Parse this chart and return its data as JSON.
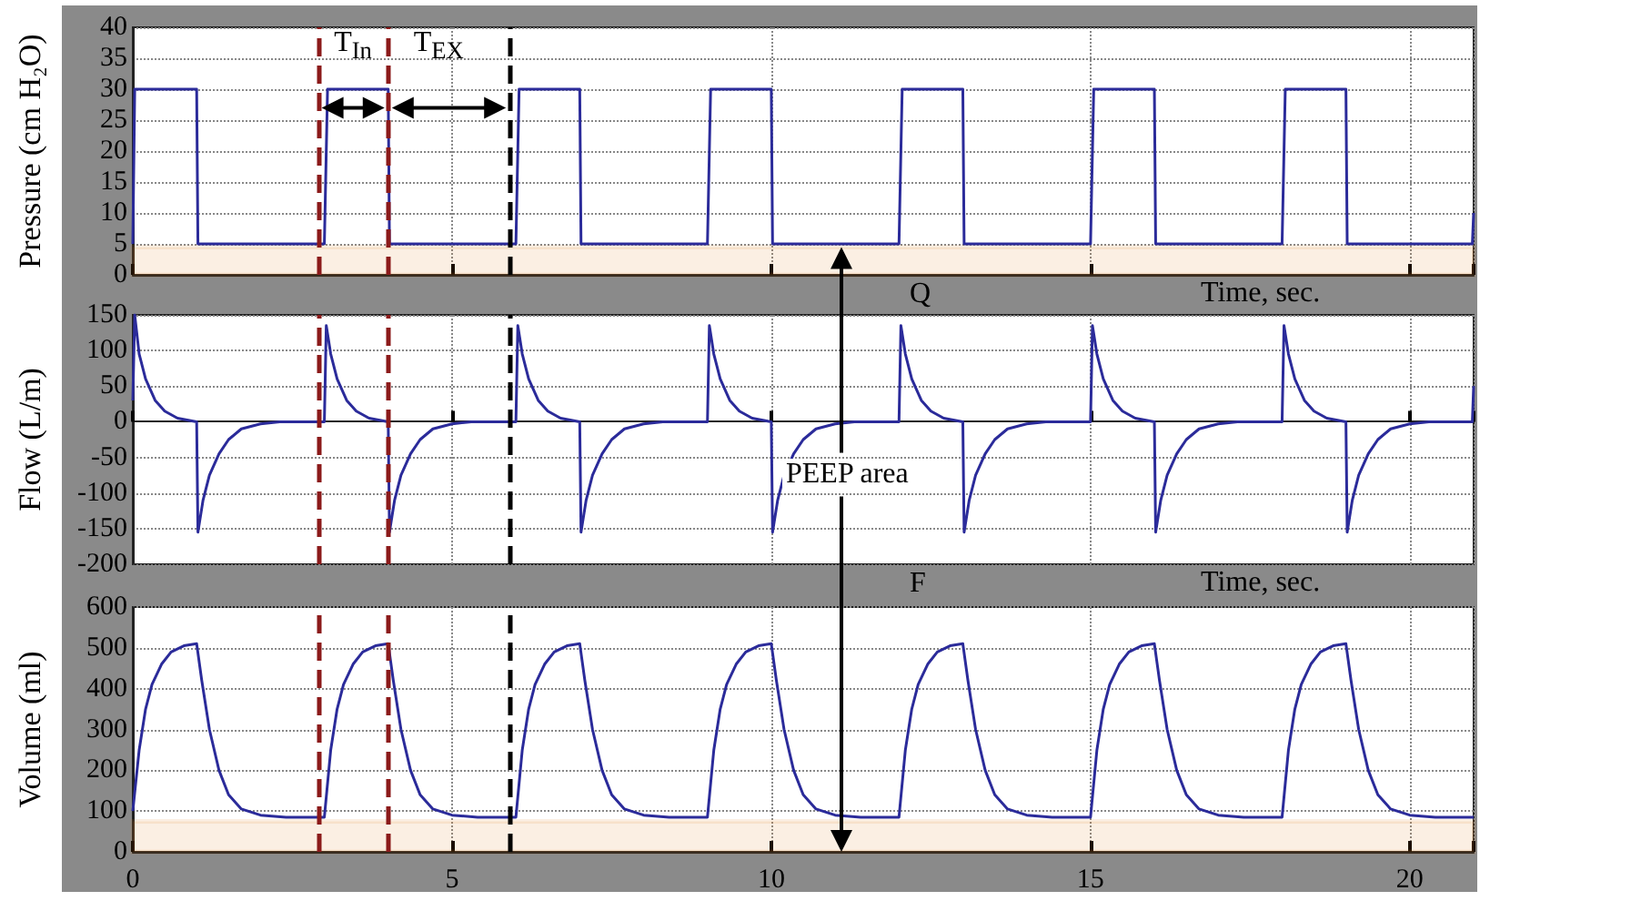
{
  "chart_data": [
    {
      "type": "line",
      "ylabel": "Pressure (cm H₂O)",
      "xlabel": "Time, sec.",
      "xlim": [
        0,
        21
      ],
      "xticks": [
        0,
        5,
        10,
        15,
        20
      ],
      "ylim": [
        0,
        40
      ],
      "yticks": [
        0,
        5,
        10,
        15,
        20,
        25,
        30,
        35,
        40
      ],
      "tick_labels": "y",
      "grid": true,
      "marker": "none",
      "line_style": "solid",
      "series": [
        {
          "color": "#2b2b9a",
          "x": [
            0,
            0.03,
            1,
            1.02,
            3,
            3.05,
            4,
            4.02,
            6,
            6.05,
            7,
            7.02,
            9,
            9.05,
            10,
            10.02,
            12,
            12.05,
            13,
            13.02,
            15,
            15.05,
            16,
            16.02,
            18,
            18.05,
            19,
            19.02,
            20.98,
            21
          ],
          "values": [
            5,
            30,
            30,
            5,
            5,
            30,
            30,
            5,
            5,
            30,
            30,
            5,
            5,
            30,
            30,
            5,
            5,
            30,
            30,
            5,
            5,
            30,
            30,
            5,
            5,
            30,
            30,
            5,
            5,
            10
          ]
        }
      ],
      "ref_lines": [
        {
          "axis": "x",
          "value": 2.9,
          "color": "#8b1a1a",
          "line_style": "dashed"
        },
        {
          "axis": "x",
          "value": 4,
          "color": "#8b1a1a",
          "line_style": "dashed"
        },
        {
          "axis": "x",
          "value": 5.9,
          "color": "#000000",
          "line_style": "dashed"
        }
      ],
      "bands": [
        {
          "axis": "y",
          "from": 0,
          "to": 4.5,
          "color": "#e07b1a"
        }
      ],
      "annotations": [
        "T$_{In}$",
        "T$_{EX}$",
        "Q"
      ]
    },
    {
      "type": "line",
      "ylabel": "Flow (L/m)",
      "xlabel": "Time, sec.",
      "xlim": [
        0,
        21
      ],
      "xticks": [
        0,
        5,
        10,
        15,
        20
      ],
      "ylim": [
        -200,
        150
      ],
      "yticks": [
        -200,
        -150,
        -100,
        -50,
        0,
        50,
        100,
        150
      ],
      "tick_labels": "y",
      "grid": true,
      "marker": "none",
      "line_style": "solid",
      "series": [
        {
          "color": "#2b2b9a",
          "x": [
            0,
            0.03,
            0.1,
            0.2,
            0.35,
            0.5,
            0.7,
            1,
            1.02,
            1.1,
            1.2,
            1.35,
            1.5,
            1.7,
            2,
            2.3,
            3,
            3.03,
            3.1,
            3.2,
            3.35,
            3.5,
            3.7,
            4,
            4.02,
            4.1,
            4.2,
            4.35,
            4.5,
            4.7,
            5,
            5.3,
            6,
            6.03,
            6.1,
            6.2,
            6.35,
            6.5,
            6.7,
            7,
            7.02,
            7.1,
            7.2,
            7.35,
            7.5,
            7.7,
            8,
            8.3,
            9,
            9.03,
            9.1,
            9.2,
            9.35,
            9.5,
            9.7,
            10,
            10.02,
            10.1,
            10.2,
            10.35,
            10.5,
            10.7,
            11,
            11.3,
            12,
            12.03,
            12.1,
            12.2,
            12.35,
            12.5,
            12.7,
            13,
            13.02,
            13.1,
            13.2,
            13.35,
            13.5,
            13.7,
            14,
            14.3,
            15,
            15.03,
            15.1,
            15.2,
            15.35,
            15.5,
            15.7,
            16,
            16.02,
            16.1,
            16.2,
            16.35,
            16.5,
            16.7,
            17,
            17.3,
            18,
            18.03,
            18.1,
            18.2,
            18.35,
            18.5,
            18.7,
            19,
            19.02,
            19.1,
            19.2,
            19.35,
            19.5,
            19.7,
            20,
            20.3,
            20.98,
            21
          ],
          "values": [
            30,
            150,
            95,
            60,
            30,
            15,
            5,
            0,
            -155,
            -110,
            -75,
            -45,
            -25,
            -10,
            -3,
            0,
            0,
            135,
            95,
            60,
            30,
            15,
            5,
            0,
            -155,
            -110,
            -75,
            -45,
            -25,
            -10,
            -3,
            0,
            0,
            135,
            95,
            60,
            30,
            15,
            5,
            0,
            -155,
            -110,
            -75,
            -45,
            -25,
            -10,
            -3,
            0,
            0,
            135,
            95,
            60,
            30,
            15,
            5,
            0,
            -155,
            -110,
            -75,
            -45,
            -25,
            -10,
            -3,
            0,
            0,
            135,
            95,
            60,
            30,
            15,
            5,
            0,
            -155,
            -110,
            -75,
            -45,
            -25,
            -10,
            -3,
            0,
            0,
            135,
            95,
            60,
            30,
            15,
            5,
            0,
            -155,
            -110,
            -75,
            -45,
            -25,
            -10,
            -3,
            0,
            0,
            135,
            95,
            60,
            30,
            15,
            5,
            0,
            -155,
            -110,
            -75,
            -45,
            -25,
            -10,
            -3,
            0,
            0,
            50
          ]
        }
      ],
      "ref_lines": [
        {
          "axis": "x",
          "value": 2.9,
          "color": "#8b1a1a",
          "line_style": "dashed"
        },
        {
          "axis": "x",
          "value": 4,
          "color": "#8b1a1a",
          "line_style": "dashed"
        },
        {
          "axis": "x",
          "value": 5.9,
          "color": "#000000",
          "line_style": "dashed"
        }
      ],
      "annotations": [
        "PEEP area",
        "F"
      ]
    },
    {
      "type": "line",
      "ylabel": "Volume (ml)",
      "xlim": [
        0,
        21
      ],
      "xticks": [
        0,
        5,
        10,
        15,
        20
      ],
      "ylim": [
        0,
        600
      ],
      "yticks": [
        0,
        100,
        200,
        300,
        400,
        500,
        600
      ],
      "grid": true,
      "marker": "none",
      "line_style": "solid",
      "series": [
        {
          "color": "#2b2b9a",
          "x": [
            0,
            0.1,
            0.2,
            0.3,
            0.45,
            0.6,
            0.8,
            1,
            1.08,
            1.2,
            1.35,
            1.5,
            1.7,
            2,
            2.4,
            3,
            3.1,
            3.2,
            3.3,
            3.45,
            3.6,
            3.8,
            4,
            4.08,
            4.2,
            4.35,
            4.5,
            4.7,
            5,
            5.4,
            6,
            6.1,
            6.2,
            6.3,
            6.45,
            6.6,
            6.8,
            7,
            7.08,
            7.2,
            7.35,
            7.5,
            7.7,
            8,
            8.4,
            9,
            9.1,
            9.2,
            9.3,
            9.45,
            9.6,
            9.8,
            10,
            10.08,
            10.2,
            10.35,
            10.5,
            10.7,
            11,
            11.4,
            12,
            12.1,
            12.2,
            12.3,
            12.45,
            12.6,
            12.8,
            13,
            13.08,
            13.2,
            13.35,
            13.5,
            13.7,
            14,
            14.4,
            15,
            15.1,
            15.2,
            15.3,
            15.45,
            15.6,
            15.8,
            16,
            16.08,
            16.2,
            16.35,
            16.5,
            16.7,
            17,
            17.4,
            18,
            18.1,
            18.2,
            18.3,
            18.45,
            18.6,
            18.8,
            19,
            19.08,
            19.2,
            19.35,
            19.5,
            19.7,
            20,
            20.4,
            21
          ],
          "values": [
            100,
            250,
            350,
            410,
            460,
            490,
            505,
            510,
            420,
            300,
            200,
            140,
            105,
            90,
            85,
            85,
            250,
            350,
            410,
            460,
            490,
            505,
            510,
            420,
            300,
            200,
            140,
            105,
            90,
            85,
            85,
            250,
            350,
            410,
            460,
            490,
            505,
            510,
            420,
            300,
            200,
            140,
            105,
            90,
            85,
            85,
            250,
            350,
            410,
            460,
            490,
            505,
            510,
            420,
            300,
            200,
            140,
            105,
            90,
            85,
            85,
            250,
            350,
            410,
            460,
            490,
            505,
            510,
            420,
            300,
            200,
            140,
            105,
            90,
            85,
            85,
            250,
            350,
            410,
            460,
            490,
            505,
            510,
            420,
            300,
            200,
            140,
            105,
            90,
            85,
            85,
            250,
            350,
            410,
            460,
            490,
            505,
            510,
            420,
            300,
            200,
            140,
            105,
            90,
            85,
            85
          ]
        }
      ],
      "ref_lines": [
        {
          "axis": "x",
          "value": 2.9,
          "color": "#8b1a1a",
          "line_style": "dashed"
        },
        {
          "axis": "x",
          "value": 4,
          "color": "#8b1a1a",
          "line_style": "dashed"
        },
        {
          "axis": "x",
          "value": 5.9,
          "color": "#000000",
          "line_style": "dashed"
        }
      ],
      "bands": [
        {
          "axis": "y",
          "from": 0,
          "to": 75,
          "color": "#e07b1a"
        }
      ]
    }
  ]
}
